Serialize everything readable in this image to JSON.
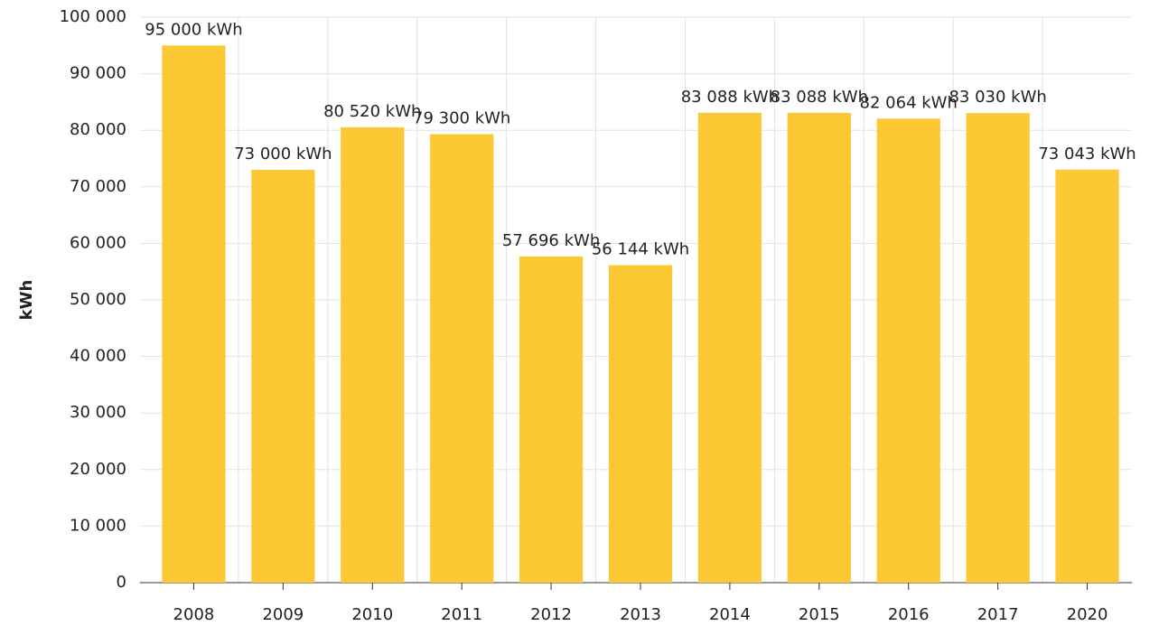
{
  "chart_data": {
    "type": "bar",
    "y_label": "kWh",
    "categories": [
      "2008",
      "2009",
      "2010",
      "2011",
      "2012",
      "2013",
      "2014",
      "2015",
      "2016",
      "2017",
      "2020"
    ],
    "values": [
      95000,
      73000,
      80520,
      79300,
      57696,
      56144,
      83088,
      83088,
      82064,
      83030,
      73043
    ],
    "value_labels": [
      "95 000 kWh",
      "73 000 kWh",
      "80 520 kWh",
      "79 300 kWh",
      "57 696 kWh",
      "56 144 kWh",
      "83 088 kWh",
      "83 088 kWh",
      "82 064 kWh",
      "83 030 kWh",
      "73 043 kWh"
    ],
    "color": "#fcc934",
    "ylim": [
      0,
      100000
    ],
    "yticks": [
      0,
      {
        "value": 10000,
        "label": "10 000"
      },
      {
        "value": 20000,
        "label": "20 000"
      },
      {
        "value": 30000,
        "label": "30 000"
      },
      {
        "value": 40000,
        "label": "40 000"
      },
      {
        "value": 50000,
        "label": "50 000"
      },
      {
        "value": 60000,
        "label": "60 000"
      },
      {
        "value": 70000,
        "label": "70 000"
      },
      {
        "value": 80000,
        "label": "80 000"
      },
      {
        "value": 90000,
        "label": "90 000"
      },
      {
        "value": 100000,
        "label": "100 000"
      }
    ],
    "grid": true
  }
}
